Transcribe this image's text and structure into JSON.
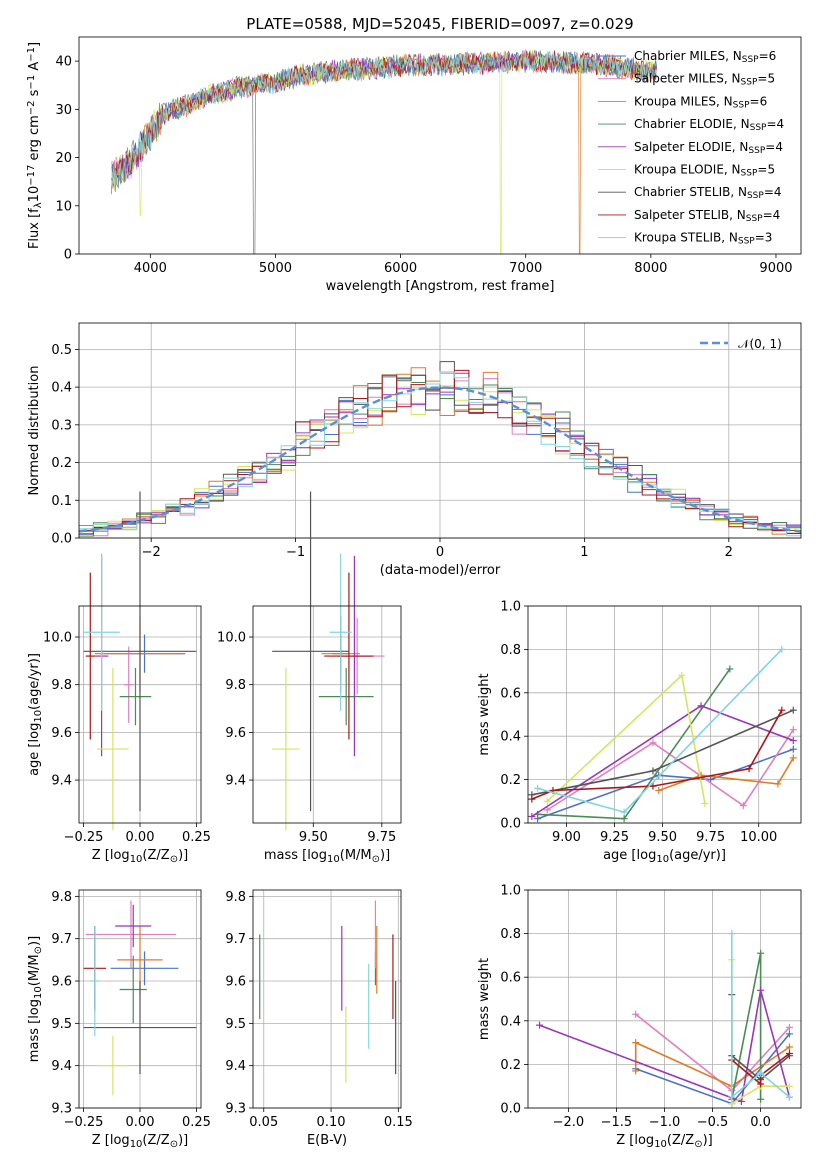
{
  "title": "PLATE=0588, MJD=52045, FIBERID=0097, z=0.029",
  "colors": {
    "Chabrier MILES": "#4b72c4",
    "Salpeter MILES": "#e07fbf",
    "Kroupa MILES": "#e07b25",
    "Chabrier ELODIE": "#4d8a55",
    "Salpeter ELODIE": "#9b36b8",
    "Kroupa ELODIE": "#d4e65c",
    "Chabrier STELIB": "#555555",
    "Salpeter STELIB": "#a81818",
    "Kroupa STELIB": "#82d5dd"
  },
  "chart_data": [
    {
      "id": "spectrum",
      "type": "line",
      "xlabel": "wavelength [Angstrom, rest frame]",
      "ylabel": "Flux [f$_\\lambda$10$^{-17}$ erg cm$^{-2}$ s$^{-1}$ A$^{-1}$]",
      "ylabel_parts": {
        "a": "Flux [f",
        "b": "λ",
        "c": "10",
        "d": "−17",
        "e": " erg cm",
        "f": "−2",
        "g": " s",
        "h": "−1",
        "i": " A",
        "j": "−1",
        "k": "]"
      },
      "xlim": [
        3430,
        9200
      ],
      "ylim": [
        0,
        45
      ],
      "xticks": [
        4000,
        5000,
        6000,
        7000,
        8000,
        9000
      ],
      "yticks": [
        0,
        10,
        20,
        30,
        40
      ],
      "legend_loc": "upper right",
      "series": [
        {
          "name": "Chabrier MILES, N$_{SSP}$=6",
          "label": "Chabrier MILES, N",
          "sub": "SSP",
          "val": "=6"
        },
        {
          "name": "Salpeter MILES, N$_{SSP}$=5",
          "label": "Salpeter MILES, N",
          "sub": "SSP",
          "val": "=5"
        },
        {
          "name": "Kroupa MILES, N$_{SSP}$=6",
          "label": "Kroupa MILES, N",
          "sub": "SSP",
          "val": "=6"
        },
        {
          "name": "Chabrier ELODIE, N$_{SSP}$=4",
          "label": "Chabrier ELODIE, N",
          "sub": "SSP",
          "val": "=4"
        },
        {
          "name": "Salpeter ELODIE, N$_{SSP}$=4",
          "label": "Salpeter ELODIE, N",
          "sub": "SSP",
          "val": "=4"
        },
        {
          "name": "Kroupa ELODIE, N$_{SSP}$=5",
          "label": "Kroupa ELODIE, N",
          "sub": "SSP",
          "val": "=5"
        },
        {
          "name": "Chabrier STELIB, N$_{SSP}$=4",
          "label": "Chabrier STELIB, N",
          "sub": "SSP",
          "val": "=4"
        },
        {
          "name": "Salpeter STELIB, N$_{SSP}$=4",
          "label": "Salpeter STELIB, N",
          "sub": "SSP",
          "val": "=4"
        },
        {
          "name": "Kroupa STELIB, N$_{SSP}$=3",
          "label": "Kroupa STELIB, N",
          "sub": "SSP",
          "val": "=3"
        }
      ],
      "continuum_anchors": [
        [
          3700,
          16
        ],
        [
          3800,
          18
        ],
        [
          3900,
          21
        ],
        [
          4000,
          25
        ],
        [
          4100,
          29
        ],
        [
          4300,
          31
        ],
        [
          4500,
          33
        ],
        [
          4700,
          34.5
        ],
        [
          5000,
          35.5
        ],
        [
          5200,
          37
        ],
        [
          5500,
          38
        ],
        [
          6000,
          39
        ],
        [
          6500,
          39.5
        ],
        [
          7000,
          40
        ],
        [
          7500,
          39.5
        ],
        [
          8000,
          38
        ]
      ],
      "data_x_range": [
        3690,
        8050
      ],
      "dropouts": [
        [
          3920,
          8
        ],
        [
          4830,
          0
        ],
        [
          6800,
          0
        ],
        [
          7430,
          0
        ]
      ]
    },
    {
      "id": "residuals",
      "type": "step",
      "xlabel": "(data-model)/error",
      "ylabel": "Normed distribution",
      "xlim": [
        -2.5,
        2.5
      ],
      "ylim": [
        0,
        0.57
      ],
      "xticks": [
        -2,
        -1,
        0,
        1,
        2
      ],
      "yticks": [
        0.0,
        0.1,
        0.2,
        0.3,
        0.4,
        0.5
      ],
      "bin_width": 0.1,
      "legend": "$\\mathcal{N}(0,1)$",
      "legend_text": "𝒩(0, 1)",
      "legend_loc": "upper right",
      "gaussian": {
        "mean": 0,
        "sigma": 1
      }
    },
    {
      "id": "age-vs-Z",
      "type": "errorbar",
      "xlabel": "Z [log$_{10}$(Z/Z$_\\odot$)]",
      "ylabel": "age  [log$_{10}$(age/yr)]",
      "xlim": [
        -0.27,
        0.27
      ],
      "ylim": [
        9.22,
        10.13
      ],
      "xticks": [
        -0.25,
        0.0,
        0.25
      ],
      "yticks": [
        9.4,
        9.6,
        9.8,
        10.0
      ],
      "points": [
        {
          "s": "Chabrier MILES",
          "x": 0.02,
          "xerr": 0.18,
          "y": 9.93,
          "yerr": 0.08
        },
        {
          "s": "Salpeter MILES",
          "x": -0.05,
          "xerr": 0.02,
          "y": 9.8,
          "yerr": 0.16
        },
        {
          "s": "Kroupa MILES",
          "x": 0.0,
          "xerr": 0.2,
          "y": 9.93,
          "yerr": 0.16
        },
        {
          "s": "Chabrier ELODIE",
          "x": -0.02,
          "xerr": 0.07,
          "y": 9.75,
          "yerr": 0.12
        },
        {
          "s": "Salpeter ELODIE",
          "x": -0.17,
          "xerr": 0.03,
          "y": 9.92,
          "yerr": 0.42
        },
        {
          "s": "Kroupa ELODIE",
          "x": -0.12,
          "xerr": 0.07,
          "y": 9.53,
          "yerr": 0.34
        },
        {
          "s": "Chabrier STELIB",
          "x": 0.0,
          "xerr": 0.25,
          "y": 9.94,
          "yerr": 0.67
        },
        {
          "s": "Salpeter STELIB",
          "x": -0.22,
          "xerr": 0.02,
          "y": 9.92,
          "yerr": 0.35
        },
        {
          "s": "Kroupa STELIB",
          "x": -0.17,
          "xerr": 0.08,
          "y": 10.02,
          "yerr": 0.33
        }
      ]
    },
    {
      "id": "age-vs-mass",
      "type": "errorbar",
      "xlabel": "mass [log$_{10}$(M/M$_\\odot$)]",
      "ylabel": "",
      "xlim": [
        9.28,
        9.82
      ],
      "ylim": [
        9.22,
        10.13
      ],
      "xticks": [
        9.5,
        9.75
      ],
      "yticks": [
        9.4,
        9.6,
        9.8,
        10.0
      ],
      "points": [
        {
          "s": "Chabrier MILES",
          "x": 9.6,
          "xerr": 0.03,
          "y": 9.93,
          "yerr": 0.08
        },
        {
          "s": "Salpeter MILES",
          "x": 9.66,
          "xerr": 0.1,
          "y": 9.92,
          "yerr": 0.16
        },
        {
          "s": "Kroupa MILES",
          "x": 9.6,
          "xerr": 0.07,
          "y": 9.93,
          "yerr": 0.16
        },
        {
          "s": "Chabrier ELODIE",
          "x": 9.62,
          "xerr": 0.1,
          "y": 9.75,
          "yerr": 0.12
        },
        {
          "s": "Salpeter ELODIE",
          "x": 9.65,
          "xerr": 0.06,
          "y": 9.92,
          "yerr": 0.42
        },
        {
          "s": "Kroupa ELODIE",
          "x": 9.4,
          "xerr": 0.05,
          "y": 9.53,
          "yerr": 0.34
        },
        {
          "s": "Chabrier STELIB",
          "x": 9.49,
          "xerr": 0.14,
          "y": 9.94,
          "yerr": 0.67
        },
        {
          "s": "Salpeter STELIB",
          "x": 9.63,
          "xerr": 0.09,
          "y": 9.92,
          "yerr": 0.35
        },
        {
          "s": "Kroupa STELIB",
          "x": 9.6,
          "xerr": 0.04,
          "y": 10.02,
          "yerr": 0.33
        }
      ]
    },
    {
      "id": "weight-vs-age",
      "type": "line",
      "xlabel": "age  [log$_{10}$(age/yr)]",
      "ylabel": "mass weight",
      "xlim": [
        8.8,
        10.22
      ],
      "ylim": [
        0,
        1
      ],
      "xticks": [
        9.0,
        9.25,
        9.5,
        9.75,
        10.0
      ],
      "yticks": [
        0.0,
        0.2,
        0.4,
        0.6,
        0.8,
        1.0
      ],
      "series": [
        {
          "s": "Chabrier MILES",
          "x": [
            8.85,
            9.48,
            9.75,
            10.18
          ],
          "y": [
            0.02,
            0.22,
            0.2,
            0.34
          ]
        },
        {
          "s": "Salpeter MILES",
          "x": [
            8.9,
            9.45,
            9.92,
            10.18
          ],
          "y": [
            0.06,
            0.37,
            0.08,
            0.43
          ]
        },
        {
          "s": "Kroupa MILES",
          "x": [
            9.48,
            9.7,
            10.1,
            10.18
          ],
          "y": [
            0.15,
            0.22,
            0.18,
            0.3
          ]
        },
        {
          "s": "Chabrier ELODIE",
          "x": [
            8.85,
            9.3,
            9.85
          ],
          "y": [
            0.04,
            0.02,
            0.71
          ]
        },
        {
          "s": "Salpeter ELODIE",
          "x": [
            8.82,
            9.7,
            10.18
          ],
          "y": [
            0.03,
            0.54,
            0.38
          ]
        },
        {
          "s": "Kroupa ELODIE",
          "x": [
            8.9,
            9.6,
            9.72
          ],
          "y": [
            0.1,
            0.68,
            0.09
          ]
        },
        {
          "s": "Chabrier STELIB",
          "x": [
            8.82,
            9.45,
            10.18
          ],
          "y": [
            0.13,
            0.24,
            0.52
          ]
        },
        {
          "s": "Salpeter STELIB",
          "x": [
            8.82,
            8.93,
            9.45,
            9.95,
            10.12
          ],
          "y": [
            0.11,
            0.15,
            0.17,
            0.25,
            0.52
          ]
        },
        {
          "s": "Kroupa STELIB",
          "x": [
            8.85,
            9.3,
            10.12
          ],
          "y": [
            0.16,
            0.05,
            0.8
          ]
        }
      ]
    },
    {
      "id": "mass-vs-Z",
      "type": "errorbar",
      "xlabel": "Z [log$_{10}$(Z/Z$_\\odot$)]",
      "ylabel": "mass [log$_{10}$(M/M$_\\odot$)]",
      "xlim": [
        -0.27,
        0.27
      ],
      "ylim": [
        9.3,
        9.815
      ],
      "xticks": [
        -0.25,
        0.0,
        0.25
      ],
      "yticks": [
        9.3,
        9.4,
        9.5,
        9.6,
        9.7,
        9.8
      ],
      "points": [
        {
          "s": "Chabrier MILES",
          "x": 0.02,
          "xerr": 0.15,
          "y": 9.63,
          "yerr": 0.04
        },
        {
          "s": "Salpeter MILES",
          "x": -0.04,
          "xerr": 0.2,
          "y": 9.71,
          "yerr": 0.08
        },
        {
          "s": "Kroupa MILES",
          "x": 0.0,
          "xerr": 0.1,
          "y": 9.65,
          "yerr": 0.08
        },
        {
          "s": "Chabrier ELODIE",
          "x": -0.03,
          "xerr": 0.06,
          "y": 9.58,
          "yerr": 0.08
        },
        {
          "s": "Salpeter ELODIE",
          "x": -0.03,
          "xerr": 0.08,
          "y": 9.73,
          "yerr": 0.05
        },
        {
          "s": "Kroupa ELODIE",
          "x": -0.12,
          "xerr": 0.07,
          "y": 9.4,
          "yerr": 0.07
        },
        {
          "s": "Chabrier STELIB",
          "x": 0.0,
          "xerr": 0.25,
          "y": 9.49,
          "yerr": 0.11
        },
        {
          "s": "Salpeter STELIB",
          "x": -0.2,
          "xerr": 0.05,
          "y": 9.63,
          "yerr": 0.1
        },
        {
          "s": "Kroupa STELIB",
          "x": -0.2,
          "xerr": 0.02,
          "y": 9.6,
          "yerr": 0.13
        }
      ]
    },
    {
      "id": "mass-vs-EBV",
      "type": "errorbar",
      "xlabel": "E(B-V)",
      "ylabel": "",
      "xlim": [
        0.042,
        0.152
      ],
      "ylim": [
        9.3,
        9.815
      ],
      "xticks": [
        0.05,
        0.1,
        0.15
      ],
      "yticks": [
        9.3,
        9.4,
        9.5,
        9.6,
        9.7,
        9.8
      ],
      "points": [
        {
          "s": "Chabrier MILES",
          "x": 0.133,
          "yerr": 0.04,
          "y": 9.63
        },
        {
          "s": "Salpeter MILES",
          "x": 0.133,
          "yerr": 0.08,
          "y": 9.71
        },
        {
          "s": "Kroupa MILES",
          "x": 0.134,
          "yerr": 0.08,
          "y": 9.65
        },
        {
          "s": "Chabrier ELODIE",
          "x": 0.047,
          "yerr": 0.1,
          "y": 9.61
        },
        {
          "s": "Salpeter ELODIE",
          "x": 0.108,
          "yerr": 0.1,
          "y": 9.63
        },
        {
          "s": "Kroupa ELODIE",
          "x": 0.111,
          "yerr": 0.09,
          "y": 9.45
        },
        {
          "s": "Chabrier STELIB",
          "x": 0.148,
          "yerr": 0.11,
          "y": 9.49
        },
        {
          "s": "Salpeter STELIB",
          "x": 0.146,
          "yerr": 0.1,
          "y": 9.61
        },
        {
          "s": "Kroupa STELIB",
          "x": 0.128,
          "yerr": 0.1,
          "y": 9.54
        }
      ]
    },
    {
      "id": "weight-vs-Z",
      "type": "line",
      "xlabel": "Z [log$_{10}$(Z/Z$_\\odot$)]",
      "ylabel": "mass weight",
      "xlim": [
        -2.42,
        0.42
      ],
      "ylim": [
        0,
        1
      ],
      "xticks": [
        -2.0,
        -1.5,
        -1.0,
        -0.5,
        0.0
      ],
      "yticks": [
        0.0,
        0.2,
        0.4,
        0.6,
        0.8,
        1.0
      ],
      "series": [
        {
          "s": "Chabrier MILES",
          "x": [
            -1.3,
            -0.3,
            0.3
          ],
          "y": [
            0.18,
            0.02,
            0.34
          ]
        },
        {
          "s": "Salpeter MILES",
          "x": [
            -1.3,
            -0.3,
            0.3
          ],
          "y": [
            0.43,
            0.08,
            0.37
          ]
        },
        {
          "s": "Kroupa MILES",
          "x": [
            -1.3,
            -1.3,
            -0.3,
            0.3
          ],
          "y": [
            0.17,
            0.3,
            0.1,
            0.28
          ]
        },
        {
          "s": "Chabrier ELODIE",
          "x": [
            -0.3,
            0.0,
            0.0
          ],
          "y": [
            0.04,
            0.71,
            0.04
          ]
        },
        {
          "s": "Salpeter ELODIE",
          "x": [
            -2.3,
            -0.2,
            0.0,
            0.3
          ],
          "y": [
            0.38,
            0.03,
            0.54,
            0.05
          ]
        },
        {
          "s": "Kroupa ELODIE",
          "x": [
            -0.3,
            -0.3,
            0.0,
            0.3
          ],
          "y": [
            0.68,
            0.02,
            0.1,
            0.1
          ]
        },
        {
          "s": "Chabrier STELIB",
          "x": [
            -0.3,
            -0.3,
            0.0,
            0.3
          ],
          "y": [
            0.52,
            0.24,
            0.13,
            0.24
          ]
        },
        {
          "s": "Salpeter STELIB",
          "x": [
            -0.3,
            0.0,
            0.0,
            0.3
          ],
          "y": [
            0.22,
            0.11,
            0.15,
            0.25
          ]
        },
        {
          "s": "Kroupa STELIB",
          "x": [
            -0.3,
            -0.3,
            0.0,
            0.3
          ],
          "y": [
            0.8,
            0.05,
            0.16,
            0.05
          ]
        }
      ]
    }
  ]
}
